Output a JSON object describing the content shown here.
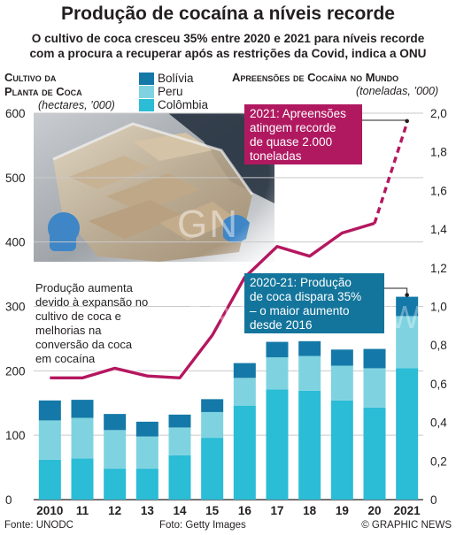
{
  "header": {
    "title": "Produção de cocaína a níveis recorde",
    "subtitle_line1": "O cultivo de coca cresceu 35% entre 2020 e 2021 para níveis recorde",
    "subtitle_line2": "com a procura a recuperar após as restrições da Covid, indica a ONU"
  },
  "left_axis": {
    "title_line1": "Cultivo da",
    "title_line2": "Planta de Coca",
    "unit": "(hectares, ’000)"
  },
  "right_axis": {
    "title": "Apreensões de Cocaína no Mundo",
    "unit": "(toneladas, ’000)"
  },
  "callouts": {
    "seizures": [
      "2021: Apreensões",
      "atingem recorde",
      "de quase 2.000",
      "toneladas"
    ],
    "production": [
      "2020-21: Produção",
      "de coca dispara 35%",
      "– o maior aumento",
      "desde 2016"
    ]
  },
  "annotation": [
    "Produção aumenta",
    "devido à expansão no",
    "cultivo de coca e",
    "melhorias na",
    "conversão da coca",
    "em cocaína"
  ],
  "photo": {
    "watermark": "GN",
    "watermark_text": "GRAPHIC NEWS"
  },
  "footer": {
    "source": "Fonte: UNODC",
    "photo_credit": "Foto: Getty Images",
    "copyright": "© GRAPHIC NEWS"
  },
  "colors": {
    "bolivia": "#1479a8",
    "peru": "#7fd3e0",
    "colombia": "#2bbcd6",
    "seizures_line": "#b5175f",
    "callout_seizures_bg": "#b01960",
    "callout_production_bg": "#13759c",
    "grid": "#c9c9c9"
  },
  "chart_data": {
    "type": "bar",
    "stacked": true,
    "categories": [
      "2010",
      "11",
      "12",
      "13",
      "14",
      "15",
      "16",
      "17",
      "18",
      "19",
      "20",
      "2021"
    ],
    "series": [
      {
        "name": "Colômbia",
        "values": [
          62,
          64,
          48,
          48,
          69,
          96,
          146,
          171,
          169,
          154,
          143,
          204
        ]
      },
      {
        "name": "Peru",
        "values": [
          61,
          63,
          60,
          50,
          43,
          40,
          43,
          50,
          54,
          54,
          61,
          81
        ]
      },
      {
        "name": "Bolívia",
        "values": [
          31,
          28,
          25,
          23,
          20,
          20,
          23,
          24,
          23,
          25,
          30,
          30
        ]
      }
    ],
    "y_left": {
      "range": [
        0,
        600
      ],
      "ticks": [
        "0",
        "100",
        "200",
        "300",
        "400",
        "500",
        "600"
      ]
    },
    "line_series": {
      "axis": "right",
      "values": [
        0.63,
        0.63,
        0.68,
        0.64,
        0.63,
        0.85,
        1.15,
        1.31,
        1.26,
        1.38,
        1.43,
        1.95
      ]
    },
    "y_right": {
      "range": [
        0,
        2.0
      ],
      "ticks": [
        "0",
        "0,2",
        "0,4",
        "0,6",
        "0,8",
        "1,0",
        "1,2",
        "1,4",
        "1,6",
        "1,8",
        "2,0"
      ]
    },
    "grid": true,
    "legend_position": "top-left"
  }
}
